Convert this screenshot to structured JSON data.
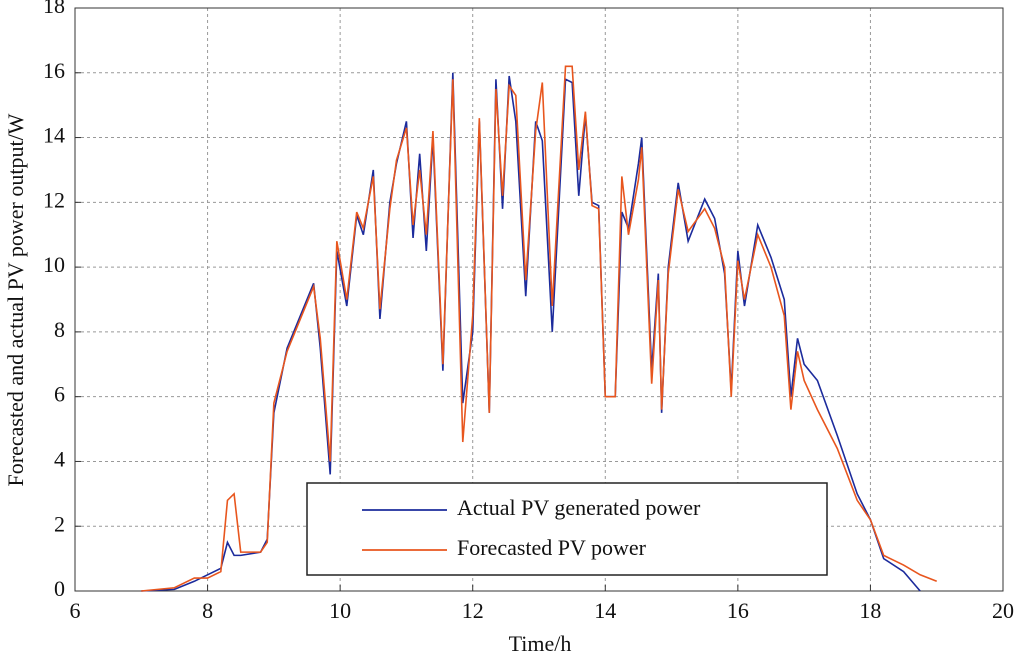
{
  "chart_data": {
    "type": "line",
    "xlabel": "Time/h",
    "ylabel": "Forecasted and actual PV power output/W",
    "x": [
      7.0,
      7.5,
      7.8,
      8.0,
      8.2,
      8.3,
      8.4,
      8.5,
      8.8,
      8.9,
      9.0,
      9.2,
      9.4,
      9.6,
      9.7,
      9.85,
      9.95,
      10.1,
      10.25,
      10.35,
      10.5,
      10.6,
      10.75,
      10.85,
      11.0,
      11.1,
      11.2,
      11.3,
      11.4,
      11.55,
      11.7,
      11.85,
      12.0,
      12.1,
      12.25,
      12.35,
      12.45,
      12.55,
      12.65,
      12.8,
      12.95,
      13.05,
      13.2,
      13.4,
      13.5,
      13.6,
      13.7,
      13.8,
      13.9,
      14.0,
      14.15,
      14.25,
      14.35,
      14.5,
      14.55,
      14.7,
      14.8,
      14.85,
      14.95,
      15.1,
      15.25,
      15.5,
      15.65,
      15.8,
      15.9,
      16.0,
      16.1,
      16.3,
      16.5,
      16.7,
      16.8,
      16.9,
      17.0,
      17.2,
      17.5,
      17.8,
      18.0,
      18.2,
      18.5,
      18.75,
      19.0
    ],
    "series": [
      {
        "name": "Actual PV generated power",
        "color": "#1c2b9c",
        "values": [
          0,
          0.05,
          0.3,
          0.5,
          0.7,
          1.5,
          1.1,
          1.1,
          1.2,
          1.6,
          5.5,
          7.5,
          8.5,
          9.5,
          7.5,
          3.6,
          10.5,
          8.8,
          11.6,
          11.0,
          13.0,
          8.4,
          12.0,
          13.2,
          14.5,
          10.9,
          13.5,
          10.5,
          14.0,
          6.8,
          16.0,
          5.8,
          8.0,
          14.5,
          5.5,
          15.8,
          11.8,
          15.9,
          14.5,
          9.1,
          14.5,
          13.9,
          8.0,
          15.8,
          15.7,
          12.2,
          14.7,
          12.0,
          11.9,
          6.0,
          6.0,
          11.7,
          11.2,
          13.2,
          14.0,
          6.8,
          9.8,
          5.5,
          10.0,
          12.6,
          10.8,
          12.1,
          11.5,
          9.8,
          6.2,
          10.5,
          8.8,
          11.3,
          10.3,
          9.0,
          6.0,
          7.8,
          7.0,
          6.5,
          4.8,
          3.0,
          2.2,
          1.0,
          0.6,
          0,
          null
        ]
      },
      {
        "name": "Forecasted PV power",
        "color": "#e8561e",
        "values": [
          0,
          0.1,
          0.4,
          0.4,
          0.6,
          2.8,
          3.0,
          1.2,
          1.2,
          1.5,
          5.8,
          7.4,
          8.4,
          9.4,
          7.8,
          4.0,
          10.8,
          9.0,
          11.7,
          11.2,
          12.8,
          8.7,
          11.8,
          13.3,
          14.3,
          11.3,
          13.0,
          11.0,
          14.2,
          7.0,
          15.8,
          4.6,
          8.5,
          14.6,
          5.5,
          15.5,
          12.2,
          15.6,
          15.3,
          9.6,
          14.2,
          15.7,
          8.8,
          16.2,
          16.2,
          13.0,
          14.8,
          11.9,
          11.8,
          6.0,
          6.0,
          12.8,
          11.0,
          12.7,
          13.7,
          6.4,
          9.6,
          5.6,
          9.8,
          12.4,
          11.1,
          11.8,
          11.2,
          10.0,
          6.0,
          10.2,
          9.0,
          11.0,
          10.0,
          8.5,
          5.6,
          7.4,
          6.5,
          5.6,
          4.4,
          2.8,
          2.2,
          1.1,
          0.8,
          0.5,
          0.3
        ]
      }
    ],
    "xlim": [
      6,
      20
    ],
    "xticks": [
      6,
      8,
      10,
      12,
      14,
      16,
      18,
      20
    ],
    "ylim": [
      0,
      18
    ],
    "yticks": [
      0,
      2,
      4,
      6,
      8,
      10,
      12,
      14,
      16,
      18
    ],
    "grid": true,
    "legend": "lower center"
  }
}
